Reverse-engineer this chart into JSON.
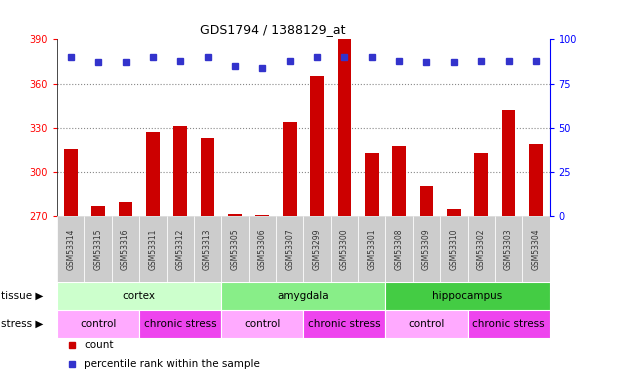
{
  "title": "GDS1794 / 1388129_at",
  "samples": [
    "GSM53314",
    "GSM53315",
    "GSM53316",
    "GSM53311",
    "GSM53312",
    "GSM53313",
    "GSM53305",
    "GSM53306",
    "GSM53307",
    "GSM53299",
    "GSM53300",
    "GSM53301",
    "GSM53308",
    "GSM53309",
    "GSM53310",
    "GSM53302",
    "GSM53303",
    "GSM53304"
  ],
  "counts": [
    316,
    277,
    280,
    327,
    331,
    323,
    272,
    271,
    334,
    365,
    390,
    313,
    318,
    291,
    275,
    313,
    342,
    319
  ],
  "percentile": [
    90,
    87,
    87,
    90,
    88,
    90,
    85,
    84,
    88,
    90,
    90,
    90,
    88,
    87,
    87,
    88,
    88,
    88
  ],
  "ylim_left": [
    270,
    390
  ],
  "ylim_right": [
    0,
    100
  ],
  "yticks_left": [
    270,
    300,
    330,
    360,
    390
  ],
  "yticks_right": [
    0,
    25,
    50,
    75,
    100
  ],
  "bar_color": "#cc0000",
  "dot_color": "#3333cc",
  "tissue_groups": [
    {
      "label": "cortex",
      "start": 0,
      "end": 6,
      "color": "#ccffcc"
    },
    {
      "label": "amygdala",
      "start": 6,
      "end": 12,
      "color": "#88ee88"
    },
    {
      "label": "hippocampus",
      "start": 12,
      "end": 18,
      "color": "#44cc44"
    }
  ],
  "stress_groups": [
    {
      "label": "control",
      "start": 0,
      "end": 3,
      "color": "#ffaaff"
    },
    {
      "label": "chronic stress",
      "start": 3,
      "end": 6,
      "color": "#ee44ee"
    },
    {
      "label": "control",
      "start": 6,
      "end": 9,
      "color": "#ffaaff"
    },
    {
      "label": "chronic stress",
      "start": 9,
      "end": 12,
      "color": "#ee44ee"
    },
    {
      "label": "control",
      "start": 12,
      "end": 15,
      "color": "#ffaaff"
    },
    {
      "label": "chronic stress",
      "start": 15,
      "end": 18,
      "color": "#ee44ee"
    }
  ],
  "tissue_label": "tissue",
  "stress_label": "stress",
  "legend_count_label": "count",
  "legend_pct_label": "percentile rank within the sample",
  "bg_color": "#ffffff",
  "grid_color": "#888888",
  "xtick_bg": "#cccccc"
}
